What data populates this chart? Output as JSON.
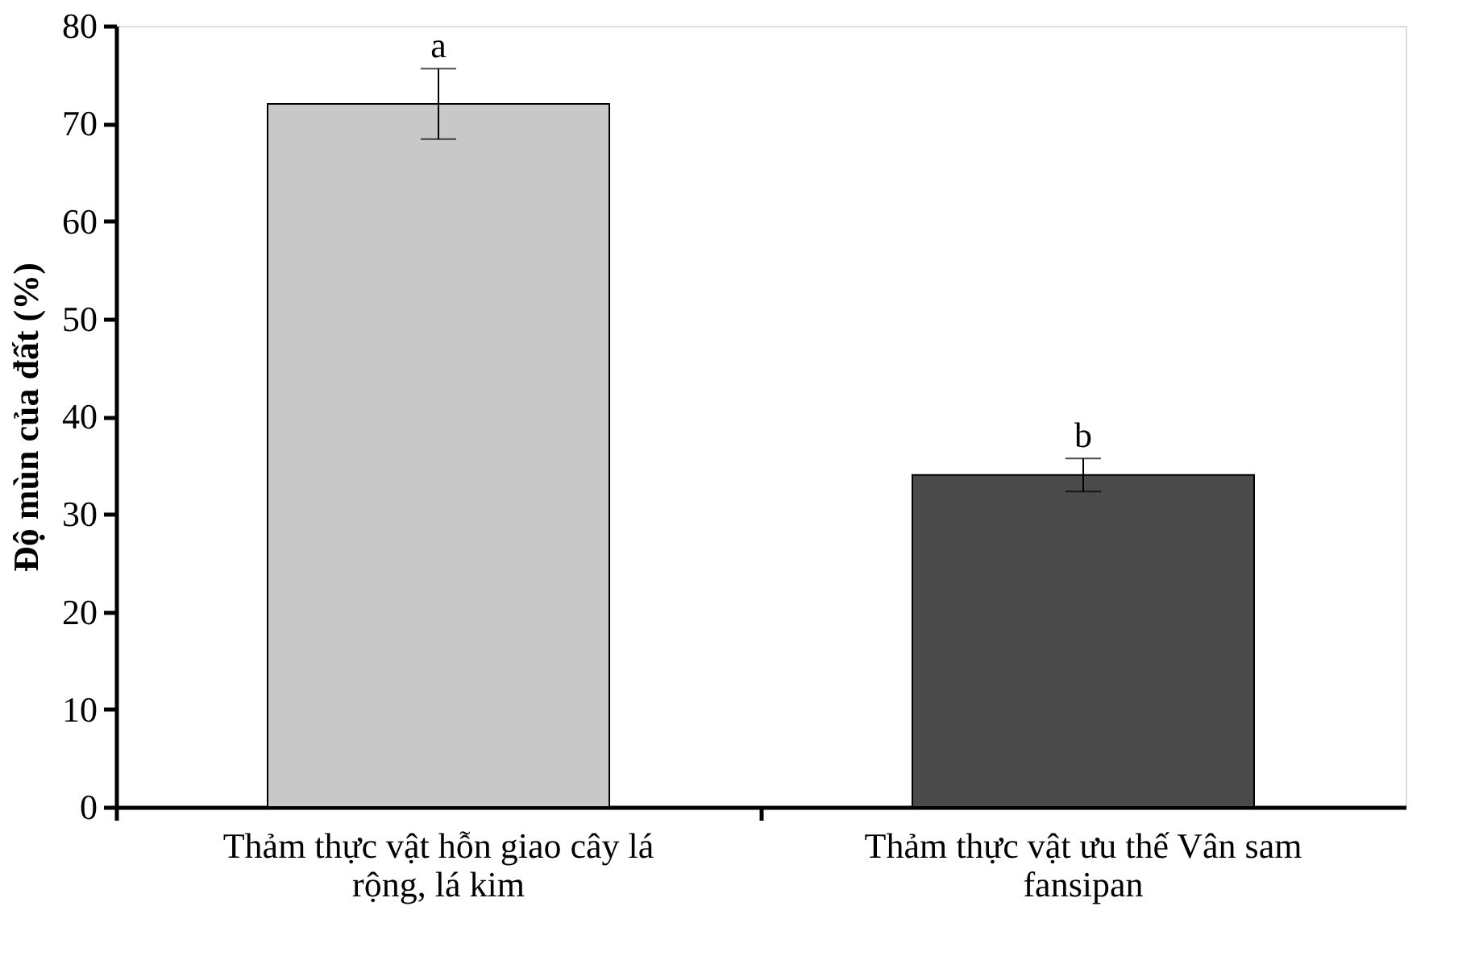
{
  "chart_data": {
    "type": "bar",
    "ylabel": "Độ mùn của đất (%)",
    "categories": [
      "Thảm thực vật hỗn giao cây lá rộng, lá kim",
      "Thảm thực vật ưu thế Vân sam fansipan"
    ],
    "values": [
      72,
      34
    ],
    "errors": [
      3.6,
      1.7
    ],
    "colors": [
      "#c8c8c8",
      "#4a4a4a"
    ],
    "ylim": [
      0,
      80
    ],
    "yticks": [
      0,
      10,
      20,
      30,
      40,
      50,
      60,
      70,
      80
    ],
    "grid": false,
    "annotations": [
      {
        "text": "a",
        "x": "Thảm thực vật hỗn giao cây lá rộng, lá kim",
        "y": 75.6
      },
      {
        "text": "b",
        "x": "Thảm thực vật ưu thế Vân sam fansipan",
        "y": 35.7
      }
    ]
  }
}
